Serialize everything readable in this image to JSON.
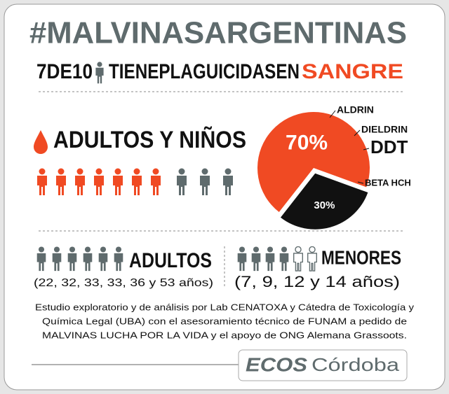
{
  "header": {
    "hashtag": "#MALVINASARGENTINAS",
    "count": "7DE10",
    "phrase": "TIENEPLAGUICIDASEN",
    "highlight": "SANGRE"
  },
  "section": {
    "title": "ADULTOS Y NIÑOS"
  },
  "chart_data": {
    "type": "pie",
    "values": [
      70,
      30
    ],
    "value_labels": [
      "70%",
      "30%"
    ],
    "colors": [
      "#f04a23",
      "#111111"
    ],
    "annotations": [
      "ALDRIN",
      "DIELDRIN",
      "DDT",
      "BETA HCH"
    ]
  },
  "adults": {
    "label": "ADULTOS",
    "ages": "(22, 32, 33, 33, 36 y 53 años)"
  },
  "minors": {
    "label": "MENORES",
    "ages": "(7, 9, 12 y 14 años)"
  },
  "footnote": [
    "Estudio exploratorio y de análisis por Lab CENATOXA y Cátedra de Toxicología y",
    "Química Legal (UBA) con el asesoramiento técnico de FUNAM a pedido de",
    "MALVINAS LUCHA POR LA VIDA y el apoyo de ONG Alemana Grassoots."
  ],
  "logo": {
    "brand": "ECOS",
    "city": "Córdoba"
  }
}
